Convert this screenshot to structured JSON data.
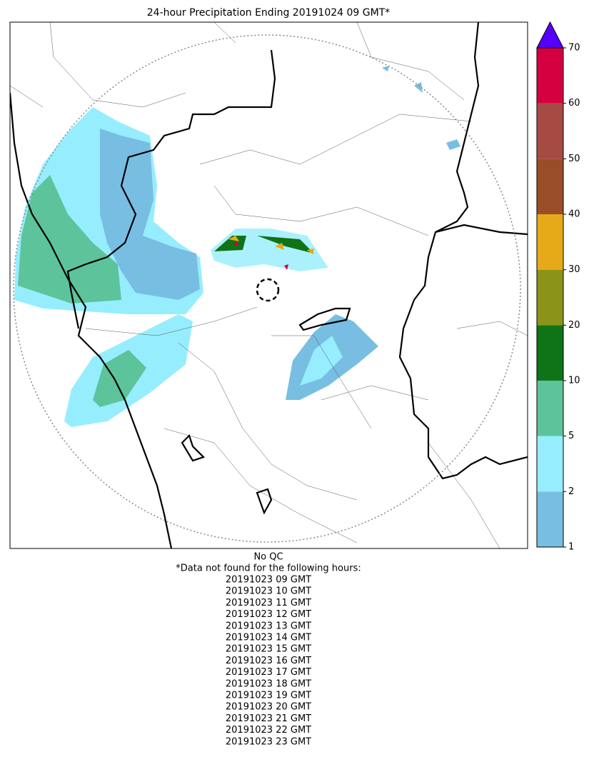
{
  "title": "24-hour Precipitation Ending 20191024 09 GMT*",
  "colorbar": {
    "boundaries": [
      1,
      2,
      5,
      10,
      20,
      30,
      40,
      50,
      60,
      70
    ],
    "colors": [
      "#77bee2",
      "#96edfd",
      "#5dc39a",
      "#0f7317",
      "#8b9418",
      "#e6a918",
      "#9a4e27",
      "#a84a44",
      "#d5003f"
    ],
    "extend_color": "#5500ff"
  },
  "footer": {
    "qc": "No QC",
    "note": "*Data not found for the following hours:",
    "hours": [
      "20191023 09 GMT",
      "20191023 10 GMT",
      "20191023 11 GMT",
      "20191023 12 GMT",
      "20191023 13 GMT",
      "20191023 14 GMT",
      "20191023 15 GMT",
      "20191023 16 GMT",
      "20191023 17 GMT",
      "20191023 18 GMT",
      "20191023 19 GMT",
      "20191023 20 GMT",
      "20191023 21 GMT",
      "20191023 22 GMT",
      "20191023 23 GMT"
    ]
  }
}
